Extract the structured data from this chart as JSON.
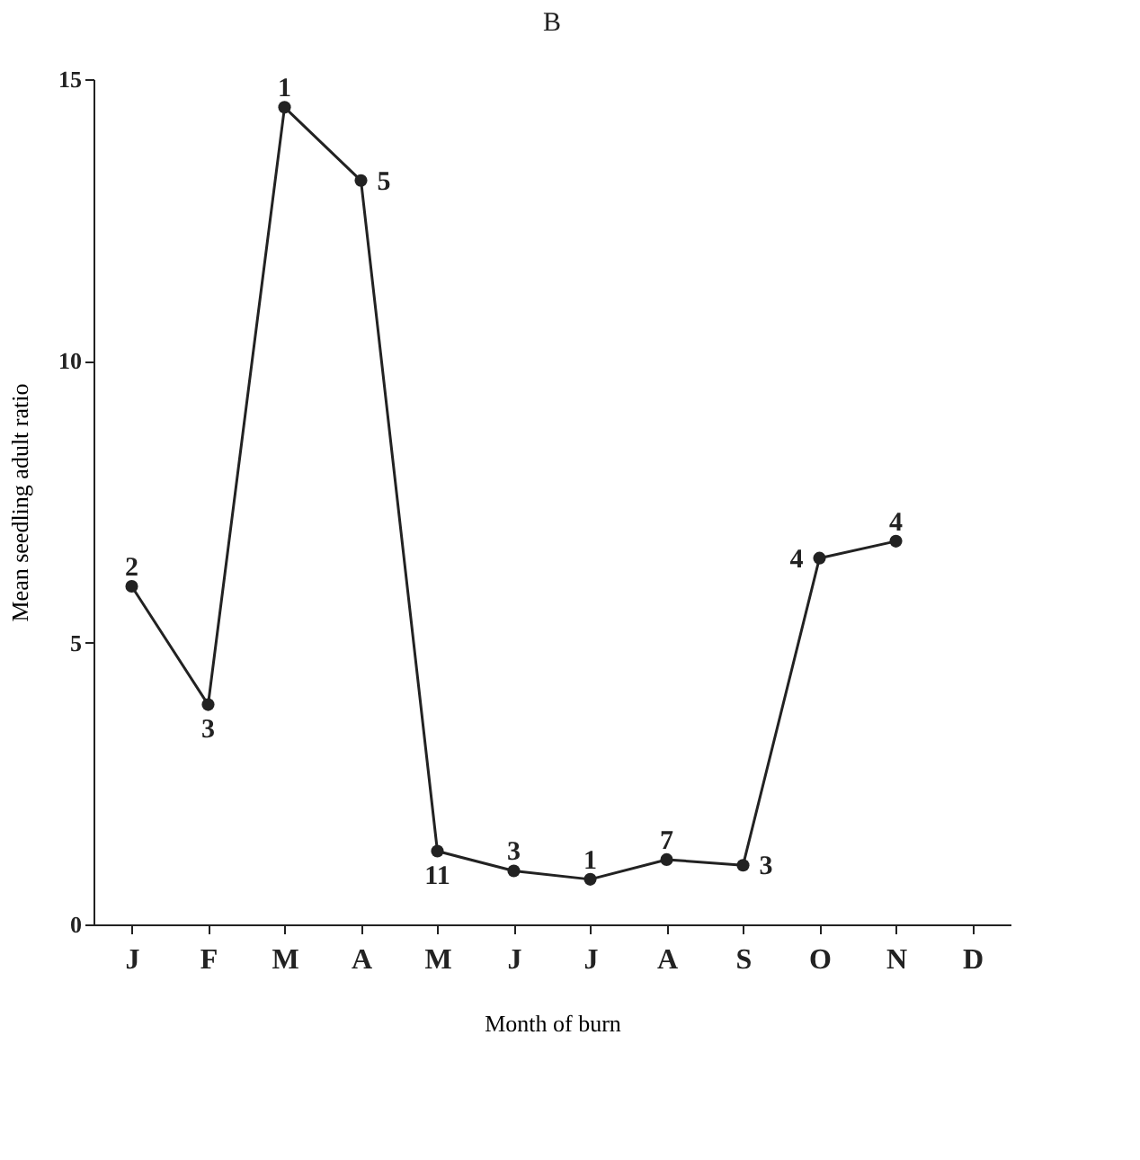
{
  "chart_data": {
    "type": "line",
    "title": "B",
    "xlabel": "Month of burn",
    "ylabel": "Mean seedling adult ratio",
    "categories": [
      "J",
      "F",
      "M",
      "A",
      "M",
      "J",
      "J",
      "A",
      "S",
      "O",
      "N",
      "D"
    ],
    "series": [
      {
        "color": "#222222",
        "values": [
          6.0,
          3.9,
          14.5,
          13.2,
          1.3,
          0.95,
          0.8,
          1.15,
          1.05,
          6.5,
          6.8,
          null
        ]
      }
    ],
    "annotations": [
      "2",
      "3",
      "1",
      "5",
      "11",
      "3",
      "1",
      "7",
      "3",
      "4",
      "4"
    ],
    "ylim": [
      0,
      15
    ],
    "yticks": [
      0,
      5,
      10,
      15
    ],
    "grid": false,
    "marker": "circle",
    "line_style": "solid"
  }
}
